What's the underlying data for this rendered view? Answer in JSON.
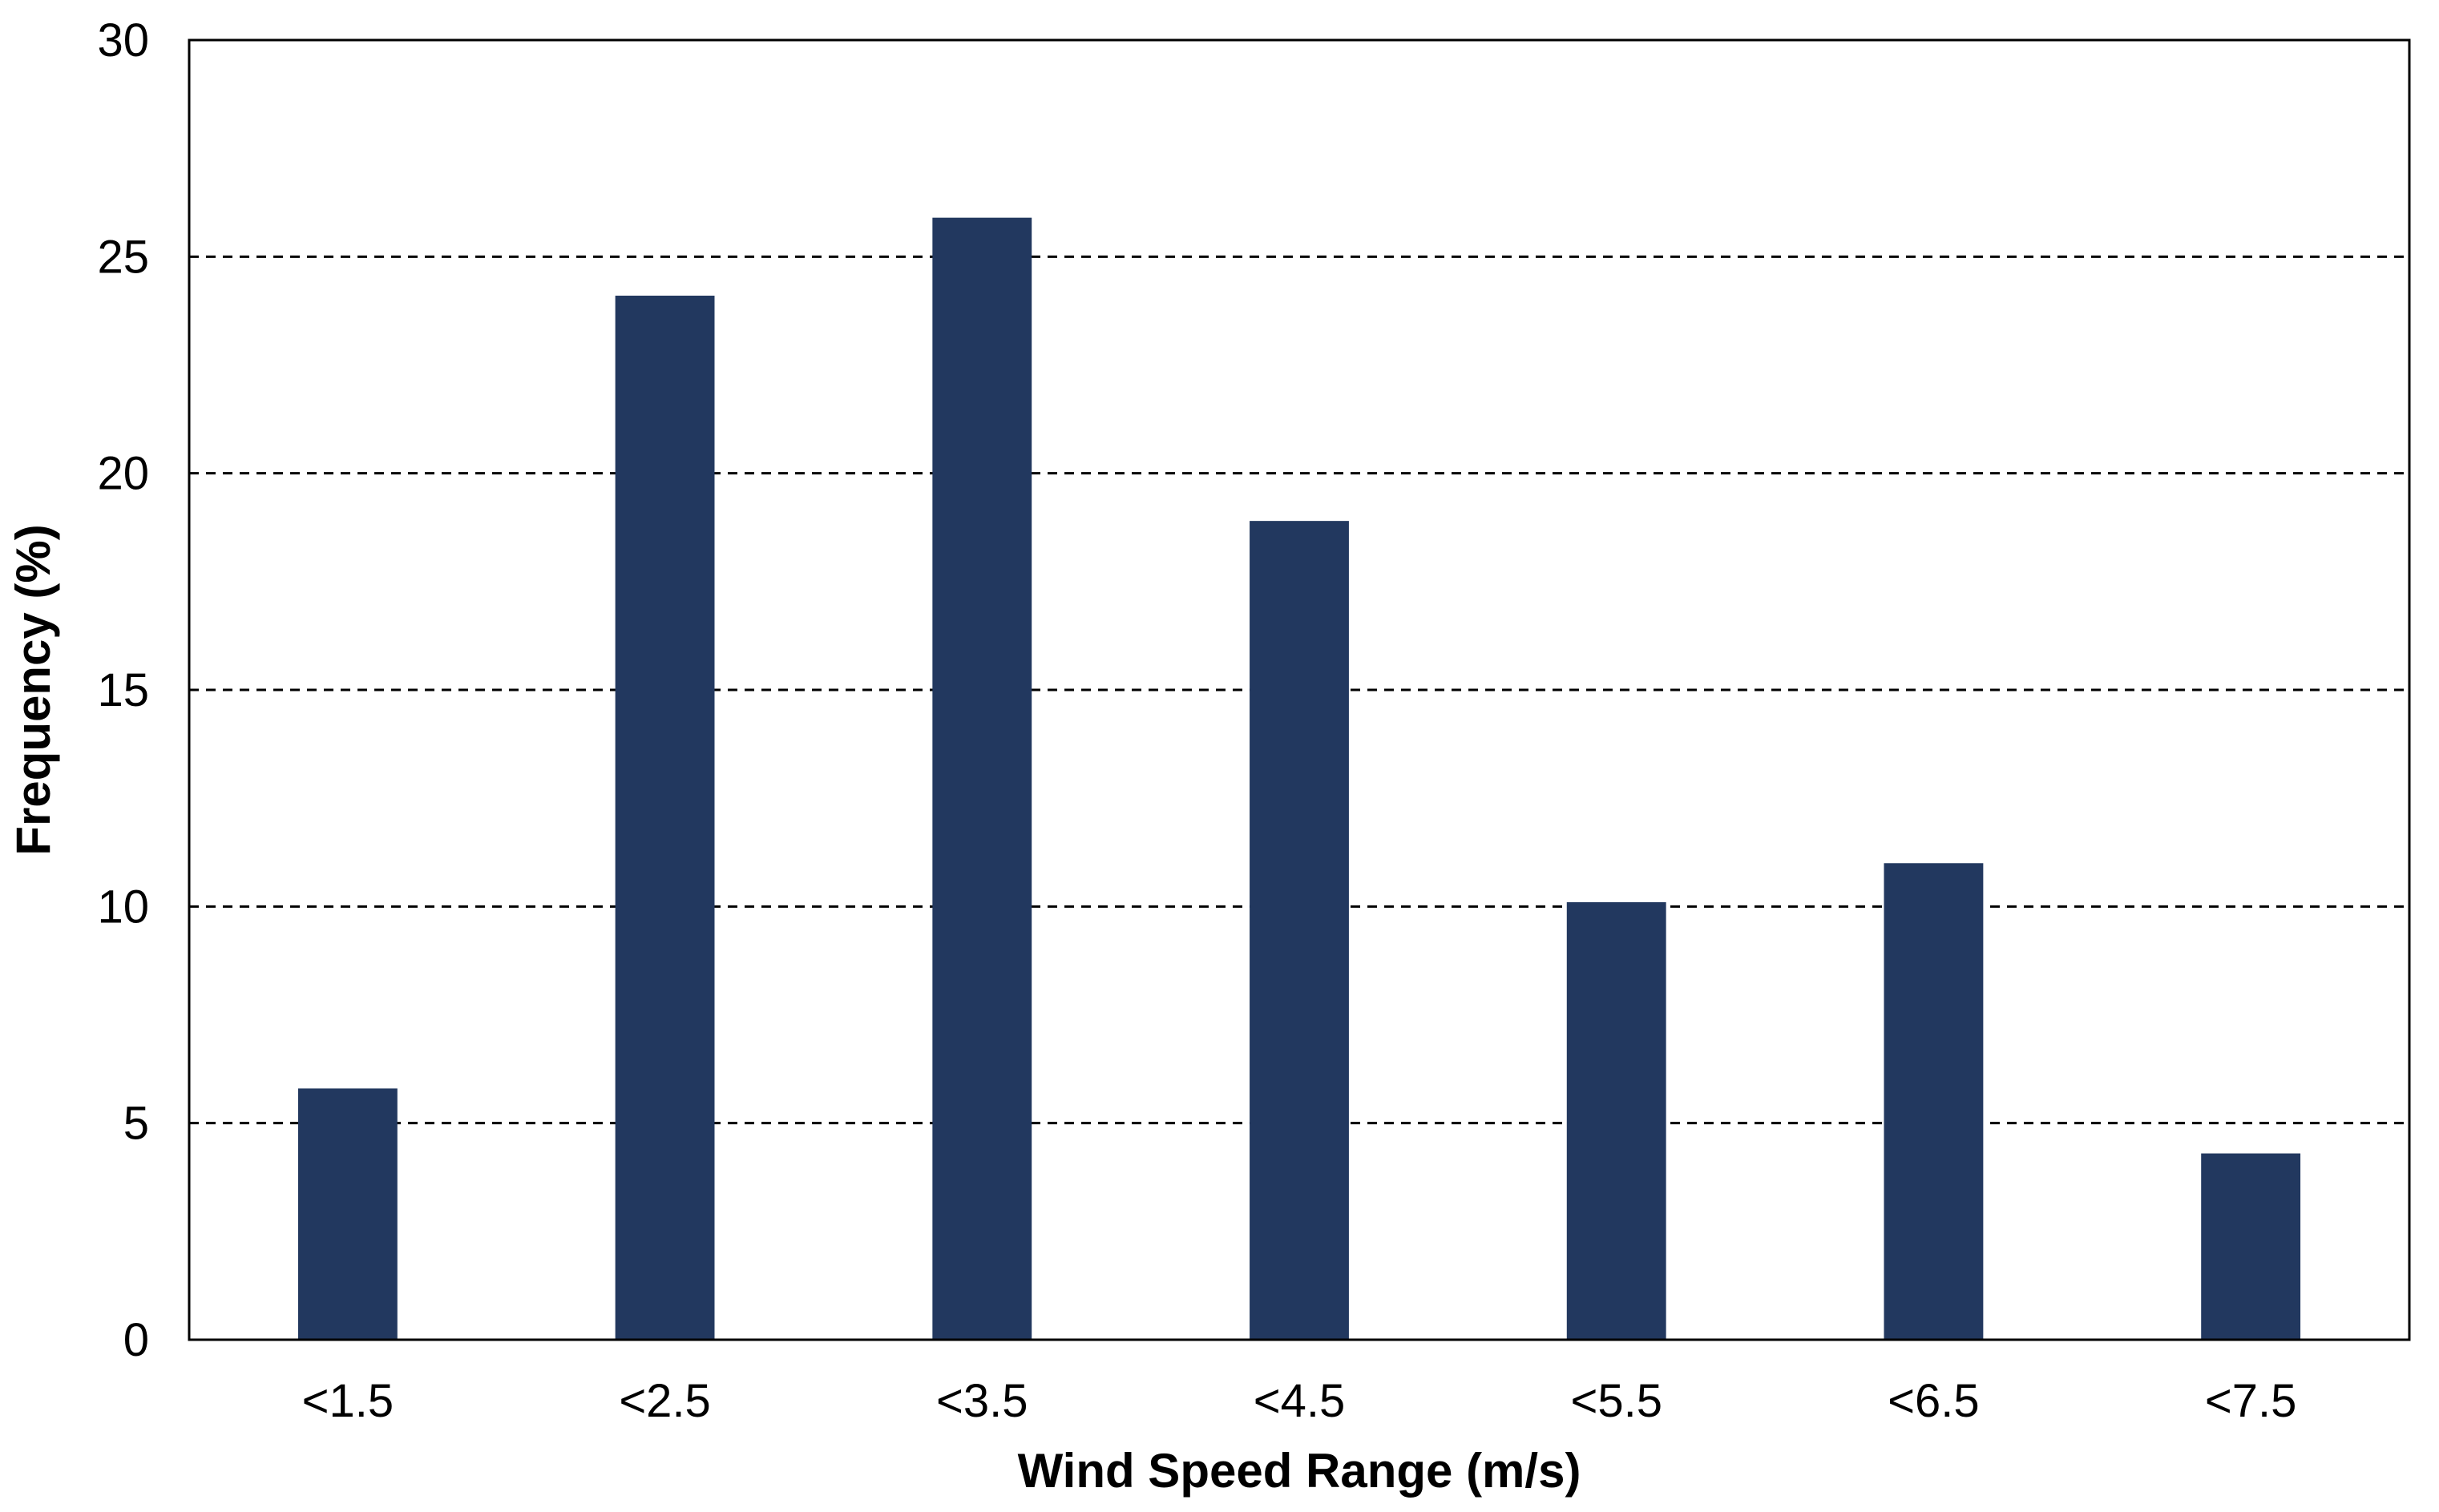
{
  "chart_data": {
    "type": "bar",
    "categories": [
      "<1.5",
      "<2.5",
      "<3.5",
      "<4.5",
      "<5.5",
      "<6.5",
      "<7.5"
    ],
    "values": [
      5.8,
      24.1,
      25.9,
      18.9,
      10.1,
      11.0,
      4.3
    ],
    "xlabel": "Wind Speed Range (m/s)",
    "ylabel": "Frequency (%)",
    "ylim": [
      0,
      30
    ],
    "yticks": [
      "0",
      "5",
      "10",
      "15",
      "20",
      "25",
      "30"
    ],
    "bar_color": "#22385f",
    "grid": "horizontal dashed",
    "legend": "none"
  }
}
